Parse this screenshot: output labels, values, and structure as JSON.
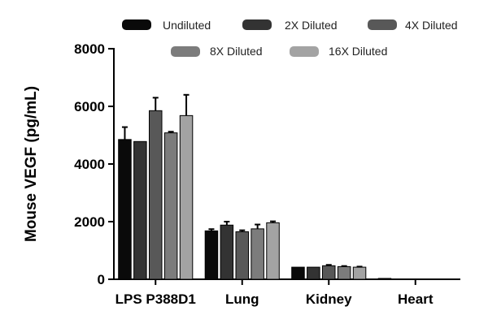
{
  "chart_data": {
    "type": "bar",
    "title": "",
    "xlabel": "",
    "ylabel": "Mouse VEGF (pg/mL)",
    "ylim": [
      0,
      8000
    ],
    "yticks": [
      "0",
      "2000",
      "4000",
      "6000",
      "8000"
    ],
    "categories": [
      "LPS P388D1",
      "Lung",
      "Kidney",
      "Heart"
    ],
    "series": [
      {
        "name": "Undiluted",
        "color": "#0a0a0a",
        "values": [
          4850,
          1680,
          420,
          30
        ],
        "errors": [
          430,
          60,
          0,
          0
        ]
      },
      {
        "name": "2X Diluted",
        "color": "#333333",
        "values": [
          4780,
          1880,
          420,
          0
        ],
        "errors": [
          0,
          120,
          0,
          0
        ]
      },
      {
        "name": "4X Diluted",
        "color": "#585858",
        "values": [
          5850,
          1650,
          470,
          0
        ],
        "errors": [
          450,
          50,
          30,
          0
        ]
      },
      {
        "name": "8X Diluted",
        "color": "#7c7c7c",
        "values": [
          5080,
          1750,
          440,
          0
        ],
        "errors": [
          40,
          150,
          20,
          0
        ]
      },
      {
        "name": "16X Diluted",
        "color": "#a3a3a3",
        "values": [
          5680,
          1960,
          420,
          0
        ],
        "errors": [
          720,
          50,
          20,
          0
        ]
      }
    ],
    "legend_position": "top"
  }
}
